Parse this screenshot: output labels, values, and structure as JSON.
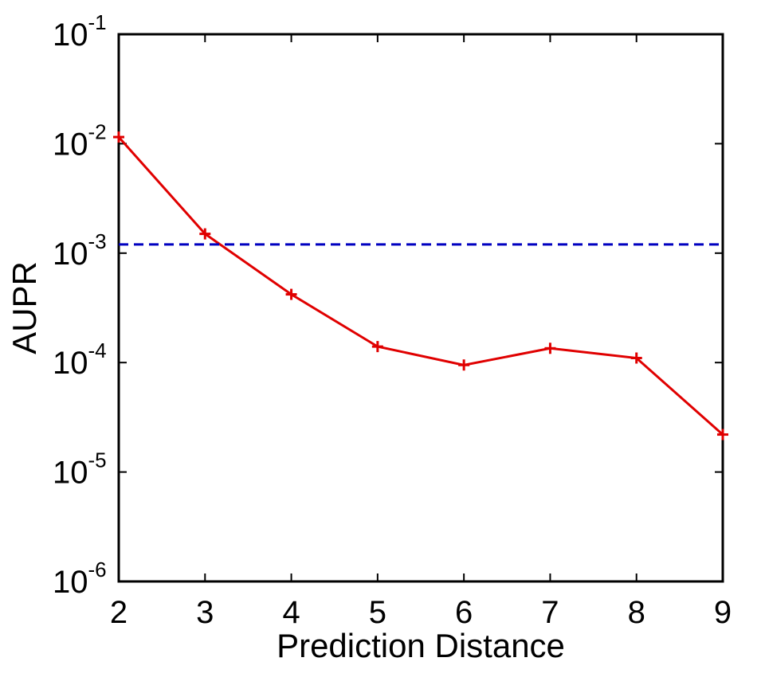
{
  "chart_data": {
    "type": "line",
    "title": "",
    "xlabel": "Prediction Distance",
    "ylabel": "AUPR",
    "xlim": [
      2,
      9
    ],
    "ylim": [
      1e-06,
      0.1
    ],
    "yscale": "log",
    "grid": false,
    "x_ticks": [
      2,
      3,
      4,
      5,
      6,
      7,
      8,
      9
    ],
    "y_ticks": [
      {
        "value": 1e-06,
        "base": "10",
        "exponent": "-6"
      },
      {
        "value": 1e-05,
        "base": "10",
        "exponent": "-5"
      },
      {
        "value": 0.0001,
        "base": "10",
        "exponent": "-4"
      },
      {
        "value": 0.001,
        "base": "10",
        "exponent": "-3"
      },
      {
        "value": 0.01,
        "base": "10",
        "exponent": "-2"
      },
      {
        "value": 0.1,
        "base": "10",
        "exponent": "-1"
      }
    ],
    "series": [
      {
        "x": [
          2,
          3,
          4,
          5,
          6,
          7,
          8,
          9
        ],
        "values": [
          0.0115,
          0.0015,
          0.00042,
          0.00014,
          9.5e-05,
          0.000135,
          0.00011,
          2.2e-05
        ],
        "color": "#e00000",
        "style": "solid",
        "marker": "+"
      },
      {
        "x": [
          2,
          9
        ],
        "values": [
          0.0012,
          0.0012
        ],
        "color": "#0000c0",
        "style": "dashed",
        "marker": "none"
      }
    ]
  }
}
